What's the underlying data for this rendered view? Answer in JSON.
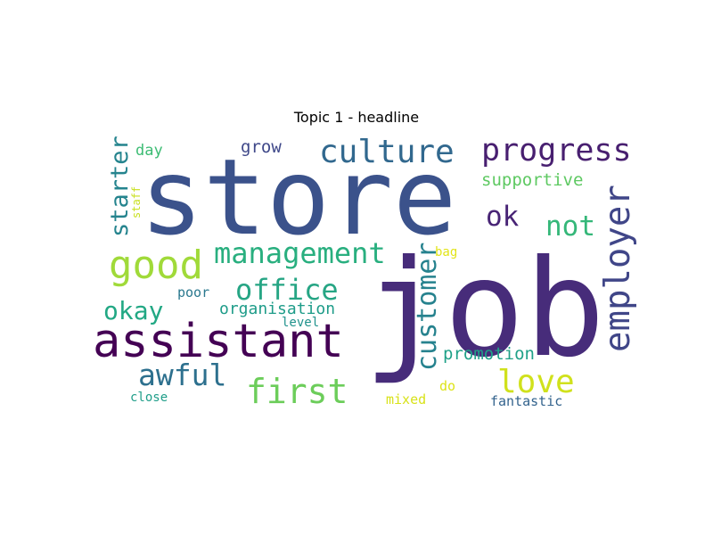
{
  "chart_data": {
    "type": "wordcloud",
    "title": "Topic 1 - headline",
    "words": [
      {
        "text": "store",
        "weight": 1.0,
        "color": "#3b528b"
      },
      {
        "text": "job",
        "weight": 0.98,
        "color": "#472c7a"
      },
      {
        "text": "assistant",
        "weight": 0.55,
        "color": "#440154"
      },
      {
        "text": "good",
        "weight": 0.42,
        "color": "#a0da39"
      },
      {
        "text": "culture",
        "weight": 0.33,
        "color": "#31688e"
      },
      {
        "text": "progress",
        "weight": 0.32,
        "color": "#481f70"
      },
      {
        "text": "employer",
        "weight": 0.38,
        "color": "#404688"
      },
      {
        "text": "management",
        "weight": 0.3,
        "color": "#29af7f"
      },
      {
        "text": "first",
        "weight": 0.31,
        "color": "#6ccd5a"
      },
      {
        "text": "office",
        "weight": 0.29,
        "color": "#26a584"
      },
      {
        "text": "customer",
        "weight": 0.28,
        "color": "#26828e"
      },
      {
        "text": "love",
        "weight": 0.31,
        "color": "#d0e11c"
      },
      {
        "text": "awful",
        "weight": 0.29,
        "color": "#2d708e"
      },
      {
        "text": "not",
        "weight": 0.29,
        "color": "#35b779"
      },
      {
        "text": "ok",
        "weight": 0.28,
        "color": "#482475"
      },
      {
        "text": "okay",
        "weight": 0.26,
        "color": "#22a884"
      },
      {
        "text": "starter",
        "weight": 0.25,
        "color": "#25848e"
      },
      {
        "text": "supportive",
        "weight": 0.17,
        "color": "#5ec962"
      },
      {
        "text": "grow",
        "weight": 0.17,
        "color": "#3f4889"
      },
      {
        "text": "promotion",
        "weight": 0.17,
        "color": "#1fa188"
      },
      {
        "text": "organisation",
        "weight": 0.16,
        "color": "#1e9c89"
      },
      {
        "text": "day",
        "weight": 0.15,
        "color": "#3dbc74"
      },
      {
        "text": "poor",
        "weight": 0.13,
        "color": "#2a788e"
      },
      {
        "text": "level",
        "weight": 0.12,
        "color": "#20928c"
      },
      {
        "text": "close",
        "weight": 0.13,
        "color": "#1f9e89"
      },
      {
        "text": "bag",
        "weight": 0.13,
        "color": "#e2e418"
      },
      {
        "text": "do",
        "weight": 0.13,
        "color": "#dde318"
      },
      {
        "text": "mixed",
        "weight": 0.13,
        "color": "#d8e219"
      },
      {
        "text": "fantastic",
        "weight": 0.14,
        "color": "#33638d"
      },
      {
        "text": "staff",
        "weight": 0.1,
        "color": "#c8e020"
      }
    ]
  }
}
